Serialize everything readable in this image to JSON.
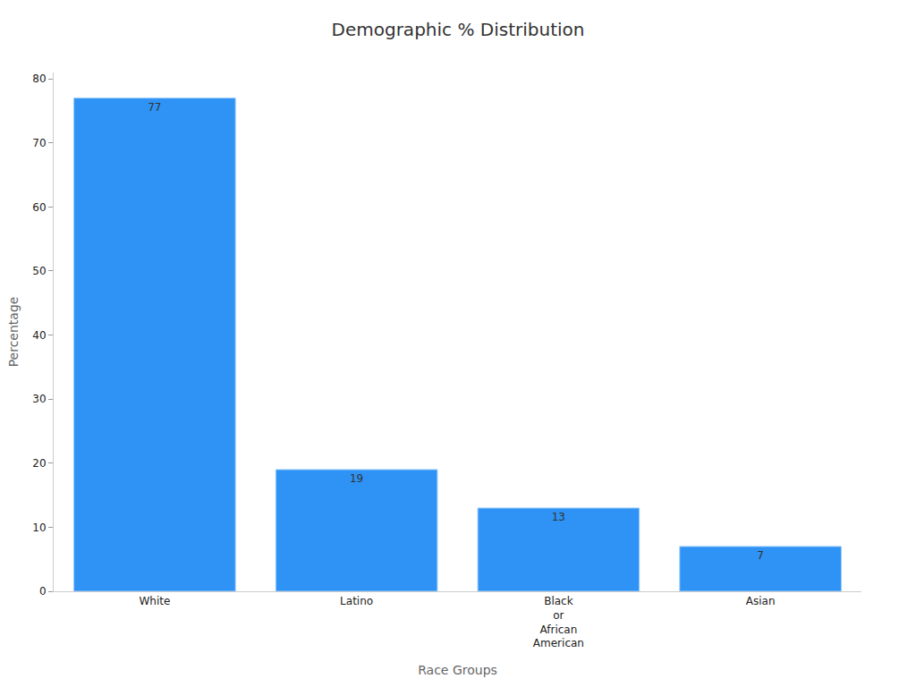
{
  "chart_data": {
    "type": "bar",
    "title": "Demographic % Distribution",
    "x_label": "Race Groups",
    "y_label": "Percentage",
    "categories": [
      "White",
      "Latino",
      "Black or African American",
      "Asian"
    ],
    "values": [
      77,
      19,
      13,
      7
    ],
    "color": "#2e93f5",
    "ylim": [
      0,
      81
    ],
    "yticks": [
      0,
      10,
      20,
      30,
      40,
      50,
      60,
      70,
      80
    ],
    "grid": false,
    "data_labels": true
  }
}
